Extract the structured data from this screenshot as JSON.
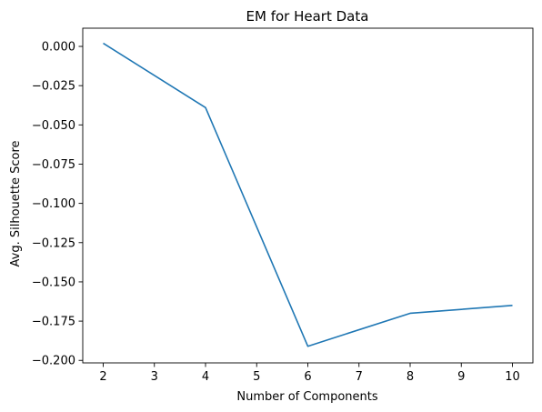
{
  "chart_data": {
    "type": "line",
    "title": "EM for Heart Data",
    "xlabel": "Number of Components",
    "ylabel": "Avg. Silhouette Score",
    "x": [
      2,
      4,
      6,
      8,
      10
    ],
    "series": [
      {
        "values": [
          0.002,
          -0.039,
          -0.191,
          -0.17,
          -0.165
        ],
        "color": "#1f77b4"
      }
    ],
    "xlim": [
      1.6,
      10.4
    ],
    "ylim": [
      -0.2016,
      0.0116
    ],
    "xticks": [
      2,
      3,
      4,
      5,
      6,
      7,
      8,
      9,
      10
    ],
    "xtick_labels": [
      "2",
      "3",
      "4",
      "5",
      "6",
      "7",
      "8",
      "9",
      "10"
    ],
    "yticks": [
      0.0,
      -0.025,
      -0.05,
      -0.075,
      -0.1,
      -0.125,
      -0.15,
      -0.175,
      -0.2
    ],
    "ytick_labels": [
      "0.000",
      "−0.025",
      "−0.050",
      "−0.075",
      "−0.100",
      "−0.125",
      "−0.150",
      "−0.175",
      "−0.200"
    ],
    "grid": false,
    "legend": false
  }
}
